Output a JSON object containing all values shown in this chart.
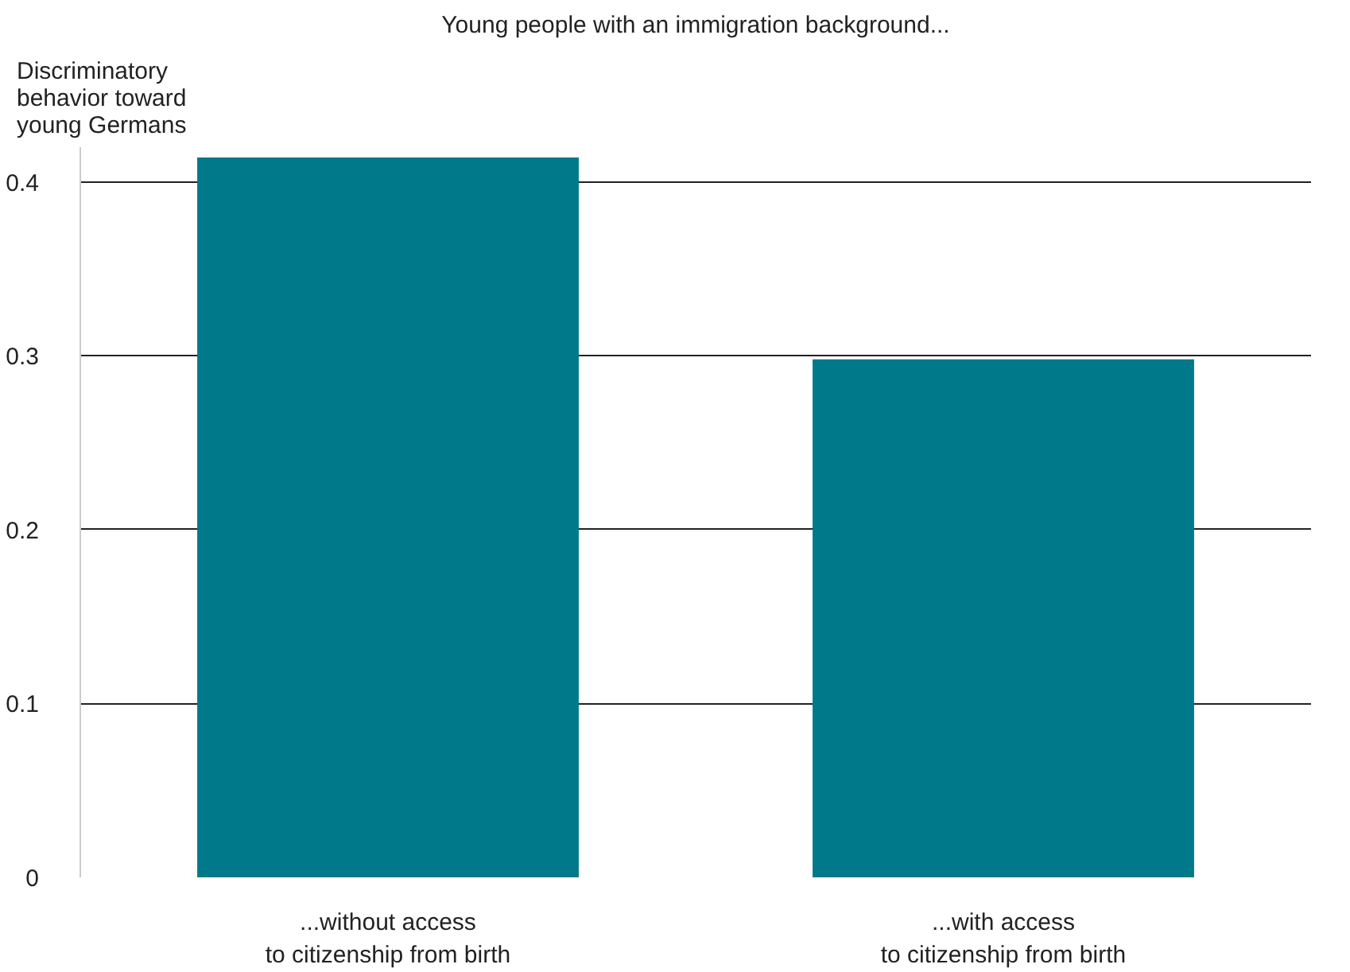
{
  "chart_data": {
    "type": "bar",
    "title": "Young people with an immigration background...",
    "ylabel": "Discriminatory\nbehavior toward\nyoung Germans",
    "categories": [
      "...without access\nto citizenship from birth",
      "...with access\nto citizenship from birth"
    ],
    "values": [
      0.414,
      0.298
    ],
    "color": "#00798a",
    "ylim": [
      0,
      0.42
    ],
    "yticks": [
      0,
      0.1,
      0.2,
      0.3,
      0.4
    ],
    "grid": "y"
  }
}
